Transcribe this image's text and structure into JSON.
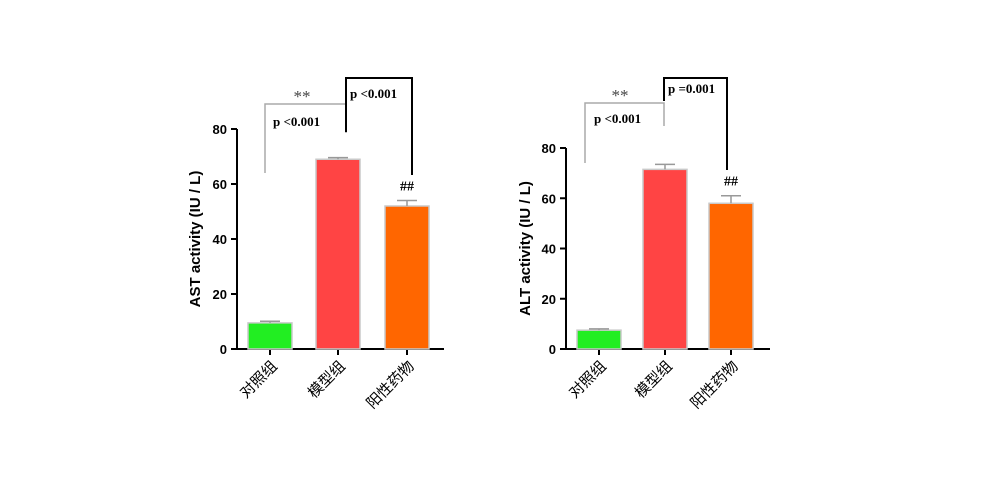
{
  "chart_data": [
    {
      "type": "bar",
      "ylabel": "AST activity (IU / L)",
      "categories": [
        "对照组",
        "模型组",
        "阳性药物"
      ],
      "values": [
        9.5,
        69,
        52
      ],
      "errors": [
        0.6,
        0.6,
        2
      ],
      "colors": [
        "#22ee22",
        "#ff4444",
        "#ff6600"
      ],
      "ylim": [
        0,
        80
      ],
      "yticks": [
        0,
        20,
        40,
        60,
        80
      ],
      "ytick_labels": [
        "0",
        "20",
        "40",
        "60",
        "80"
      ],
      "annotations": {
        "star": "**",
        "p1": "p <0.001",
        "p2": "p <0.001",
        "hash": "##"
      }
    },
    {
      "type": "bar",
      "ylabel": "ALT activity (IU / L)",
      "categories": [
        "对照组",
        "模型组",
        "阳性药物"
      ],
      "values": [
        7.5,
        71.5,
        58
      ],
      "errors": [
        0.5,
        2,
        3
      ],
      "colors": [
        "#22ee22",
        "#ff4444",
        "#ff6600"
      ],
      "ylim": [
        0,
        80
      ],
      "yticks": [
        0,
        20,
        40,
        60,
        80
      ],
      "ytick_labels": [
        "0",
        "20",
        "40",
        "60",
        "80"
      ],
      "annotations": {
        "star": "**",
        "p1": "p <0.001",
        "p2": "p =0.001",
        "hash": "##"
      }
    }
  ]
}
